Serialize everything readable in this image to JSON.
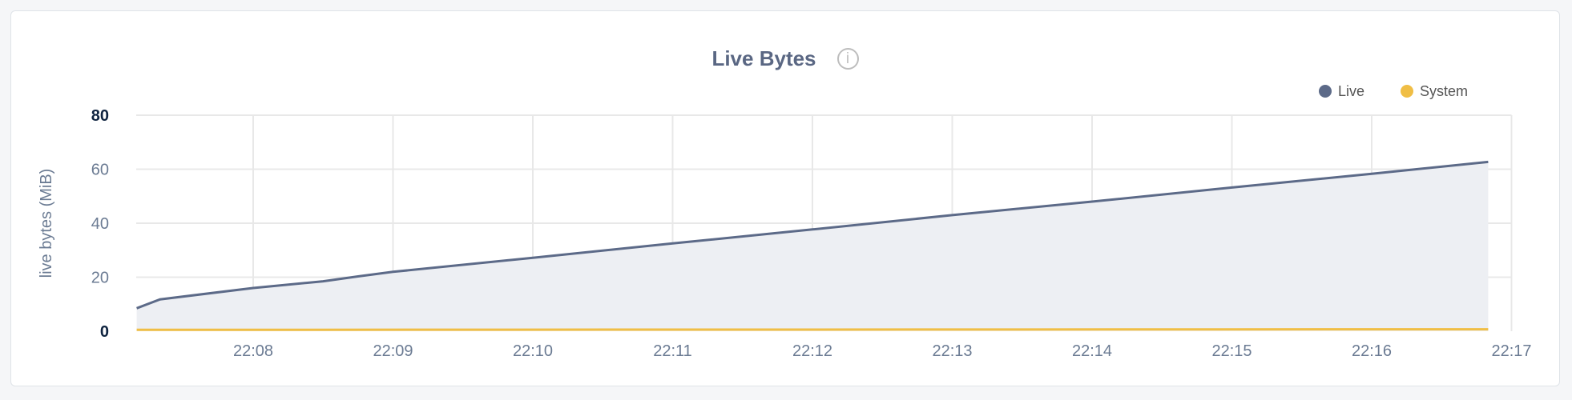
{
  "chart_data": {
    "type": "area",
    "title": "Live Bytes",
    "title_icon": "info-icon",
    "ylabel": "live bytes (MiB)",
    "xlabel": "",
    "ylim": [
      0,
      80
    ],
    "yticks": [
      0,
      20,
      40,
      60,
      80
    ],
    "xlim": [
      "22:07:00",
      "22:17:00"
    ],
    "xticks": [
      "22:08",
      "22:09",
      "22:10",
      "22:11",
      "22:12",
      "22:13",
      "22:14",
      "22:15",
      "22:16",
      "22:17"
    ],
    "grid": true,
    "legend_position": "top-right",
    "series": [
      {
        "name": "Live",
        "color": "#5c6a88",
        "fill": "#edeff3",
        "x": [
          "22:07:10",
          "22:07:20",
          "22:08:00",
          "22:08:30",
          "22:08:45",
          "22:09:00",
          "22:10:00",
          "22:11:00",
          "22:12:00",
          "22:13:00",
          "22:14:00",
          "22:15:00",
          "22:16:00",
          "22:16:50"
        ],
        "y": [
          8.5,
          11.8,
          16,
          18.5,
          20.3,
          22,
          27.2,
          32.5,
          37.7,
          43,
          48,
          53.2,
          58.3,
          62.7
        ]
      },
      {
        "name": "System",
        "color": "#f0be45",
        "x": [
          "22:07:10",
          "22:16:50"
        ],
        "y": [
          0.5,
          0.7
        ]
      }
    ]
  }
}
